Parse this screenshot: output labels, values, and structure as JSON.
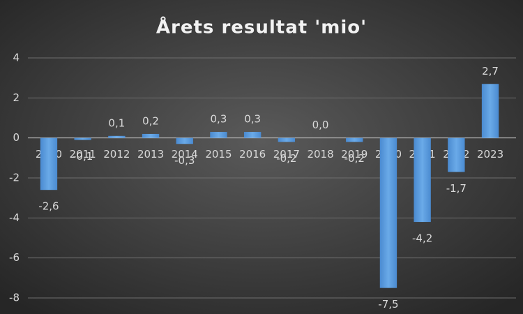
{
  "chart_data": {
    "type": "bar",
    "title": "Årets resultat 'mio'",
    "categories": [
      "2010",
      "2011",
      "2012",
      "2013",
      "2014",
      "2015",
      "2016",
      "2017",
      "2018",
      "2019",
      "2020",
      "2021",
      "2022",
      "2023"
    ],
    "values": [
      -2.6,
      -0.1,
      0.1,
      0.2,
      -0.3,
      0.3,
      0.3,
      -0.2,
      0.0,
      -0.2,
      -7.5,
      -4.2,
      -1.7,
      2.7
    ],
    "value_labels": [
      "-2,6",
      "-0,1",
      "0,1",
      "0,2",
      "-0,3",
      "0,3",
      "0,3",
      "-0,2",
      "0,0",
      "-0,2",
      "-7,5",
      "-4,2",
      "-1,7",
      "2,7"
    ],
    "color": "#5b9bd5",
    "ylim": [
      -8,
      4
    ],
    "yticks": [
      -8,
      -6,
      -4,
      -2,
      0,
      2,
      4
    ],
    "grid": true
  }
}
